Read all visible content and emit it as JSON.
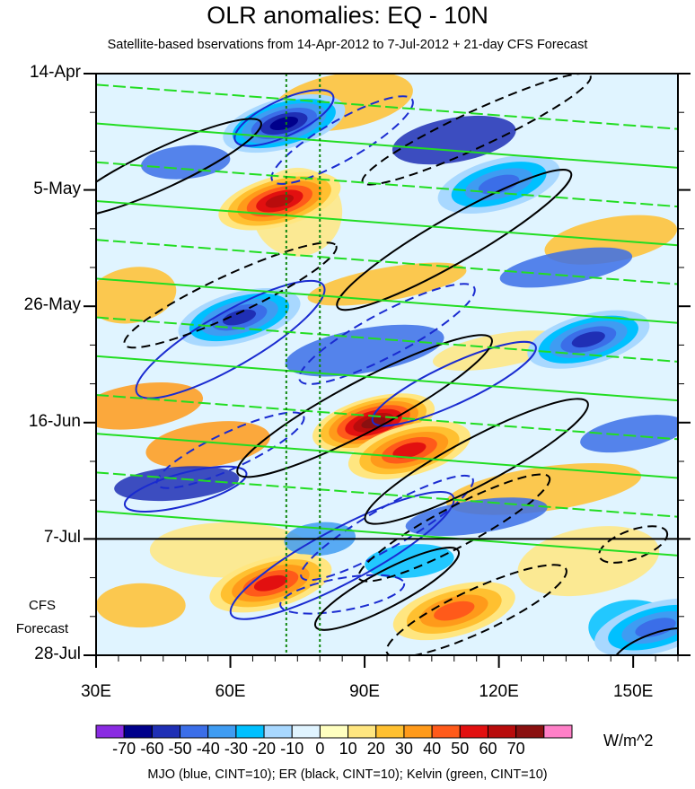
{
  "chart_data": {
    "type": "heatmap",
    "title": "OLR anomalies: EQ - 10N",
    "subtitle": "Satellite-based bservations from 14-Apr-2012 to 7-Jul-2012 + 21-day CFS Forecast",
    "x_ticks": [
      {
        "value": 30,
        "label": "30E"
      },
      {
        "value": 60,
        "label": "60E"
      },
      {
        "value": 90,
        "label": "90E"
      },
      {
        "value": 120,
        "label": "120E"
      },
      {
        "value": 150,
        "label": "150E"
      }
    ],
    "xlim": [
      30,
      160
    ],
    "y_ticks": [
      {
        "day": 0,
        "label": "14-Apr"
      },
      {
        "day": 21,
        "label": "5-May"
      },
      {
        "day": 42,
        "label": "26-May"
      },
      {
        "day": 63,
        "label": "16-Jun"
      },
      {
        "day": 84,
        "label": "7-Jul"
      },
      {
        "day": 105,
        "label": "28-Jul"
      }
    ],
    "ylim_days": [
      0,
      105
    ],
    "observation_end_day": 84,
    "forecast_label": [
      "CFS",
      "Forecast"
    ],
    "reference_longitudes": [
      72.5,
      80
    ],
    "colorbar": {
      "labels": [
        "-70",
        "-60",
        "-50",
        "-40",
        "-30",
        "-20",
        "-10",
        "0",
        "10",
        "20",
        "30",
        "40",
        "50",
        "60",
        "70"
      ],
      "colors": [
        "#8a2be2",
        "#00008b",
        "#1f2fb5",
        "#3b6ee8",
        "#3f9cf2",
        "#00c0ff",
        "#a8d8ff",
        "#e0f4ff",
        "#ffffc0",
        "#ffe680",
        "#ffc030",
        "#ff9a1a",
        "#ff5a1a",
        "#e21010",
        "#b80c0c",
        "#8a1010",
        "#ff80c8"
      ],
      "units": "W/m^2"
    },
    "anomaly_features": [
      {
        "sign": "positive",
        "lon": 71,
        "day": 23,
        "strength": 55
      },
      {
        "sign": "positive",
        "lon": 92,
        "day": 63,
        "strength": 70
      },
      {
        "sign": "positive",
        "lon": 100,
        "day": 68,
        "strength": 50
      },
      {
        "sign": "positive",
        "lon": 110,
        "day": 97,
        "strength": 40
      },
      {
        "sign": "positive",
        "lon": 69,
        "day": 92,
        "strength": 45
      },
      {
        "sign": "negative",
        "lon": 72,
        "day": 9,
        "strength": -55
      },
      {
        "sign": "negative",
        "lon": 62,
        "day": 44,
        "strength": -50
      },
      {
        "sign": "negative",
        "lon": 120,
        "day": 20,
        "strength": -40
      },
      {
        "sign": "negative",
        "lon": 140,
        "day": 48,
        "strength": -45
      },
      {
        "sign": "negative",
        "lon": 155,
        "day": 100,
        "strength": -40
      }
    ],
    "footer": "MJO (blue, CINT=10); ER (black, CINT=10); Kelvin (green, CINT=10)"
  }
}
